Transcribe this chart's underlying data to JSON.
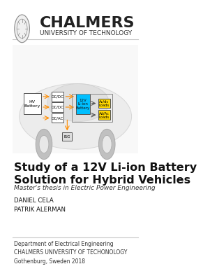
{
  "bg_color": "#ffffff",
  "title_text": "Study of a 12V Li-ion Battery\nSolution for Hybrid Vehicles",
  "subtitle_text": "Master's thesis in Electric Power Engineering",
  "authors": "DANIEL CELA\nPATRIK ALERMAN",
  "footer_line1": "Department of Electrical Engineering",
  "footer_line2": "CHALMERS UNIVERSITY OF TECHONOLOGY",
  "footer_line3": "Gothenburg, Sweden 2018",
  "chalmers_text": "CHALMERS",
  "chalmers_sub": "UNIVERSITY OF TECHNOLOGY",
  "header_line_color": "#cccccc",
  "footer_line_color": "#cccccc",
  "title_fontsize": 11.5,
  "subtitle_fontsize": 6.5,
  "author_fontsize": 6.2,
  "footer_fontsize": 5.5,
  "chalmers_fontsize": 16,
  "chalmers_sub_fontsize": 6.5,
  "hv_color": "#ffffff",
  "dcdc_color": "#ffffff",
  "liion_color": "#00bfff",
  "acdc_color": "#ffd700",
  "adac_color": "#ffd700",
  "isg_color": "#dddddd",
  "box_edge": "#555555",
  "arrow_color": "#ff8c00",
  "line_color": "#555555"
}
